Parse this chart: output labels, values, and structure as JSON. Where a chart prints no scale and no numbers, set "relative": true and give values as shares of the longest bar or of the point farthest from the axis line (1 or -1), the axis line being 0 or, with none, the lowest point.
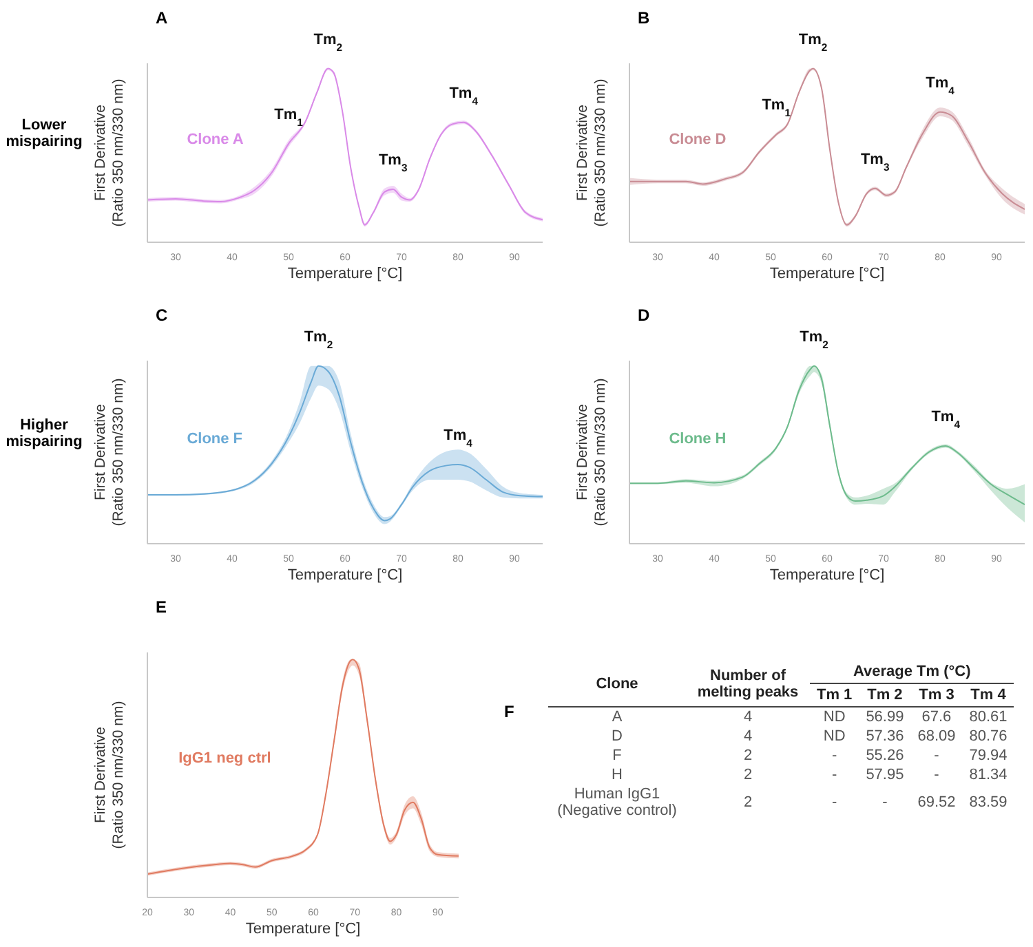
{
  "chart_data": [
    {
      "type": "line",
      "title": "A",
      "xlabel": "Temperature [°C]",
      "ylabel": "First Derivative\n(Ratio 350 nm/330 nm)",
      "relative": true,
      "tick_labels": "x",
      "xlim": [
        25,
        95
      ],
      "xticks": [
        30,
        40,
        50,
        60,
        70,
        80,
        90
      ],
      "series": [
        {
          "name": "Clone A",
          "color": "#d98ae8",
          "x": [
            25,
            30,
            35,
            38,
            41,
            44,
            47,
            50,
            53,
            55,
            57,
            58,
            59.5,
            61,
            62.5,
            63.5,
            65,
            67,
            68.5,
            70,
            71.5,
            73,
            75,
            77,
            79,
            81,
            83,
            86,
            89,
            92,
            95
          ],
          "values": [
            0.244,
            0.25,
            0.237,
            0.234,
            0.254,
            0.3,
            0.4,
            0.567,
            0.695,
            0.86,
            1,
            0.975,
            0.76,
            0.43,
            0.2,
            0.1,
            0.17,
            0.29,
            0.305,
            0.26,
            0.244,
            0.3,
            0.48,
            0.62,
            0.68,
            0.69,
            0.645,
            0.5,
            0.33,
            0.17,
            0.13
          ],
          "lower": [
            0.234,
            0.24,
            0.227,
            0.224,
            0.244,
            0.28,
            0.38,
            0.547,
            0.685,
            0.85,
            0.99,
            0.965,
            0.75,
            0.42,
            0.19,
            0.09,
            0.16,
            0.27,
            0.285,
            0.24,
            0.234,
            0.29,
            0.47,
            0.61,
            0.67,
            0.68,
            0.635,
            0.49,
            0.32,
            0.16,
            0.12
          ],
          "upper": [
            0.254,
            0.26,
            0.247,
            0.244,
            0.264,
            0.32,
            0.42,
            0.587,
            0.705,
            0.87,
            1,
            0.985,
            0.77,
            0.44,
            0.21,
            0.11,
            0.18,
            0.31,
            0.325,
            0.28,
            0.254,
            0.31,
            0.49,
            0.63,
            0.69,
            0.7,
            0.655,
            0.51,
            0.34,
            0.18,
            0.14
          ]
        }
      ],
      "annotations": [
        "Lower mispairing",
        {
          "text": "Tm$_{1}$",
          "x": 50,
          "y": 0.567
        },
        {
          "text": "Tm$_{2}$",
          "x": 57,
          "y": 1
        },
        {
          "text": "Tm$_{3}$",
          "x": 68.5,
          "y": 0.305
        },
        {
          "text": "Tm$_{4}$",
          "x": 81,
          "y": 0.69
        }
      ]
    },
    {
      "type": "line",
      "title": "B",
      "xlabel": "Temperature [°C]",
      "ylabel": "First Derivative\n(Ratio 350 nm/330 nm)",
      "relative": true,
      "tick_labels": "x",
      "xlim": [
        25,
        95
      ],
      "xticks": [
        30,
        40,
        50,
        60,
        70,
        80,
        90
      ],
      "series": [
        {
          "name": "Clone D",
          "color": "#c98c94",
          "x": [
            25,
            30,
            35,
            38,
            42,
            45,
            48,
            51,
            53,
            55,
            57,
            57.5,
            59,
            60.5,
            62,
            63.5,
            65,
            67,
            68.5,
            70.5,
            72,
            74,
            77,
            80,
            82,
            85,
            88,
            91,
            95
          ],
          "values": [
            0.35,
            0.35,
            0.35,
            0.335,
            0.365,
            0.4,
            0.52,
            0.62,
            0.68,
            0.86,
            0.99,
            1,
            0.89,
            0.53,
            0.23,
            0.1,
            0.15,
            0.28,
            0.31,
            0.27,
            0.29,
            0.43,
            0.63,
            0.75,
            0.73,
            0.58,
            0.4,
            0.28,
            0.19
          ],
          "lower": [
            0.33,
            0.34,
            0.34,
            0.325,
            0.355,
            0.39,
            0.51,
            0.61,
            0.67,
            0.85,
            0.98,
            0.99,
            0.88,
            0.52,
            0.22,
            0.09,
            0.14,
            0.27,
            0.3,
            0.26,
            0.28,
            0.42,
            0.605,
            0.725,
            0.705,
            0.555,
            0.385,
            0.25,
            0.16
          ],
          "upper": [
            0.37,
            0.36,
            0.36,
            0.345,
            0.375,
            0.41,
            0.53,
            0.63,
            0.69,
            0.87,
            1,
            1,
            0.9,
            0.54,
            0.24,
            0.11,
            0.16,
            0.29,
            0.32,
            0.28,
            0.3,
            0.44,
            0.655,
            0.775,
            0.755,
            0.605,
            0.415,
            0.31,
            0.22
          ]
        }
      ],
      "annotations": [
        {
          "text": "Tm$_{1}$",
          "x": 51,
          "y": 0.62
        },
        {
          "text": "Tm$_{2}$",
          "x": 57.5,
          "y": 1
        },
        {
          "text": "Tm$_{3}$",
          "x": 68.5,
          "y": 0.31
        },
        {
          "text": "Tm$_{4}$",
          "x": 80,
          "y": 0.75
        }
      ]
    },
    {
      "type": "line",
      "title": "C",
      "xlabel": "Temperature [°C]",
      "ylabel": "First Derivative\n(Ratio 350 nm/330 nm)",
      "relative": true,
      "tick_labels": "x",
      "xlim": [
        25,
        95
      ],
      "xticks": [
        30,
        40,
        50,
        60,
        70,
        80,
        90
      ],
      "series": [
        {
          "name": "Clone F",
          "color": "#6aaad6",
          "x": [
            25,
            30,
            35,
            40,
            44,
            47,
            50,
            52,
            54,
            55.3,
            57,
            59,
            61,
            63,
            65,
            67,
            68,
            70,
            72,
            75,
            78,
            80,
            82,
            85,
            88,
            91,
            95
          ],
          "values": [
            0.275,
            0.275,
            0.28,
            0.3,
            0.356,
            0.45,
            0.6,
            0.74,
            0.91,
            1,
            0.97,
            0.83,
            0.57,
            0.35,
            0.2,
            0.13,
            0.14,
            0.22,
            0.32,
            0.41,
            0.44,
            0.445,
            0.43,
            0.36,
            0.29,
            0.27,
            0.265
          ],
          "lower": [
            0.27,
            0.27,
            0.275,
            0.295,
            0.346,
            0.435,
            0.57,
            0.68,
            0.82,
            0.89,
            0.87,
            0.75,
            0.52,
            0.32,
            0.175,
            0.11,
            0.125,
            0.21,
            0.3,
            0.36,
            0.36,
            0.36,
            0.35,
            0.3,
            0.26,
            0.255,
            0.255
          ],
          "upper": [
            0.28,
            0.28,
            0.285,
            0.305,
            0.366,
            0.465,
            0.63,
            0.8,
            1,
            1,
            1,
            0.91,
            0.62,
            0.38,
            0.225,
            0.15,
            0.155,
            0.23,
            0.34,
            0.46,
            0.52,
            0.53,
            0.51,
            0.42,
            0.32,
            0.285,
            0.275
          ]
        }
      ],
      "annotations": [
        "Higher mispairing",
        {
          "text": "Tm$_{2}$",
          "x": 55.3,
          "y": 1
        },
        {
          "text": "Tm$_{4}$",
          "x": 80,
          "y": 0.445
        }
      ]
    },
    {
      "type": "line",
      "title": "D",
      "xlabel": "Temperature [°C]",
      "ylabel": "First Derivative\n(Ratio 350 nm/330 nm)",
      "relative": true,
      "tick_labels": "x",
      "xlim": [
        25,
        95
      ],
      "xticks": [
        30,
        40,
        50,
        60,
        70,
        80,
        90
      ],
      "series": [
        {
          "name": "Clone H",
          "color": "#6dbb8c",
          "x": [
            25,
            30,
            35,
            40,
            45,
            48,
            51,
            53,
            55,
            57,
            57.7,
            59,
            60.5,
            62,
            63.5,
            65,
            67,
            70,
            72,
            75,
            78,
            81,
            83,
            86,
            89,
            92,
            95
          ],
          "values": [
            0.34,
            0.34,
            0.353,
            0.343,
            0.374,
            0.45,
            0.54,
            0.66,
            0.86,
            0.98,
            1,
            0.93,
            0.66,
            0.4,
            0.27,
            0.24,
            0.245,
            0.27,
            0.32,
            0.425,
            0.515,
            0.55,
            0.515,
            0.425,
            0.335,
            0.275,
            0.22
          ],
          "lower": [
            0.335,
            0.335,
            0.343,
            0.323,
            0.364,
            0.44,
            0.53,
            0.65,
            0.84,
            0.945,
            0.965,
            0.905,
            0.64,
            0.385,
            0.255,
            0.22,
            0.225,
            0.22,
            0.29,
            0.415,
            0.505,
            0.54,
            0.505,
            0.41,
            0.3,
            0.2,
            0.12
          ],
          "upper": [
            0.345,
            0.345,
            0.363,
            0.353,
            0.384,
            0.46,
            0.55,
            0.67,
            0.88,
            1,
            1,
            0.955,
            0.68,
            0.415,
            0.285,
            0.26,
            0.27,
            0.31,
            0.34,
            0.435,
            0.525,
            0.56,
            0.525,
            0.44,
            0.345,
            0.31,
            0.335
          ]
        }
      ],
      "annotations": [
        {
          "text": "Tm$_{2}$",
          "x": 57.7,
          "y": 1
        },
        {
          "text": "Tm$_{4}$",
          "x": 81,
          "y": 0.55
        }
      ]
    },
    {
      "type": "line",
      "title": "E",
      "xlabel": "Temperature [°C]",
      "ylabel": "First Derivative\n(Ratio 350 nm/330 nm)",
      "relative": true,
      "tick_labels": "x",
      "xlim": [
        20,
        95
      ],
      "xticks": [
        20,
        30,
        40,
        50,
        60,
        70,
        80,
        90
      ],
      "series": [
        {
          "name": "IgG1 neg ctrl",
          "color": "#e07a60",
          "x": [
            20,
            25,
            30,
            35,
            40,
            43,
            46,
            50,
            55,
            58,
            61,
            63,
            65,
            67,
            69,
            69.5,
            71,
            73,
            75,
            77,
            78.5,
            80,
            82,
            84,
            86,
            88,
            90,
            95
          ],
          "values": [
            0.098,
            0.113,
            0.126,
            0.136,
            0.143,
            0.138,
            0.128,
            0.155,
            0.174,
            0.198,
            0.264,
            0.434,
            0.66,
            0.887,
            0.996,
            1,
            0.96,
            0.74,
            0.49,
            0.3,
            0.236,
            0.264,
            0.368,
            0.4,
            0.33,
            0.21,
            0.18,
            0.174
          ],
          "lower": [
            0.091,
            0.106,
            0.119,
            0.129,
            0.136,
            0.131,
            0.121,
            0.148,
            0.167,
            0.191,
            0.257,
            0.424,
            0.645,
            0.865,
            0.97,
            0.975,
            0.935,
            0.725,
            0.475,
            0.285,
            0.222,
            0.25,
            0.345,
            0.375,
            0.305,
            0.195,
            0.17,
            0.164
          ],
          "upper": [
            0.105,
            0.12,
            0.133,
            0.143,
            0.15,
            0.145,
            0.135,
            0.162,
            0.181,
            0.205,
            0.271,
            0.444,
            0.675,
            0.91,
            1,
            1,
            0.985,
            0.755,
            0.505,
            0.315,
            0.25,
            0.278,
            0.39,
            0.425,
            0.355,
            0.225,
            0.19,
            0.184
          ]
        }
      ]
    },
    {
      "type": "other",
      "title": "F",
      "xlabel": "Clone",
      "legend_title": "Average Tm (°C)",
      "data_labels": true,
      "categories": [
        "A",
        "D",
        "F",
        "H",
        "Human IgG1 (Negative control)"
      ],
      "series": [
        {
          "name": "Number of melting peaks",
          "values": [
            4,
            4,
            2,
            2,
            2
          ]
        },
        {
          "name": "Tm 1",
          "values": [
            null,
            null,
            null,
            null,
            null
          ],
          "value_labels": [
            "ND",
            "ND",
            "-",
            "-",
            "-"
          ]
        },
        {
          "name": "Tm 2",
          "values": [
            null,
            null,
            null,
            null,
            null
          ],
          "value_labels": [
            "56.99",
            "57.36",
            "55.26",
            "57.95",
            "-"
          ]
        },
        {
          "name": "Tm 3",
          "values": [
            null,
            null,
            null,
            null,
            null
          ],
          "value_labels": [
            "67.6",
            "68.09",
            "-",
            "-",
            "69.52"
          ]
        },
        {
          "name": "Tm 4",
          "values": [
            80.61,
            80.76,
            79.94,
            81.34,
            83.59
          ]
        }
      ]
    }
  ]
}
